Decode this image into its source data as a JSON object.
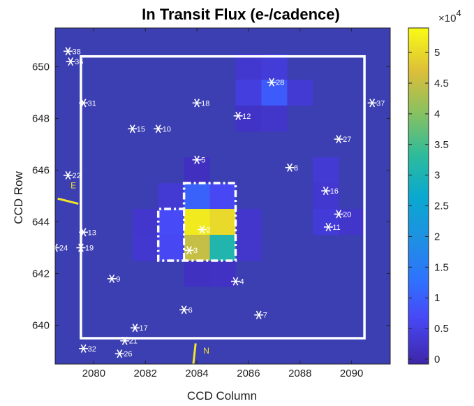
{
  "chart_data": {
    "type": "heatmap",
    "title": "In Transit Flux (e-/cadence)",
    "xlabel": "CCD Column",
    "ylabel": "CCD Row",
    "x_range": [
      2078.5,
      2091.5
    ],
    "y_range": [
      638.5,
      651.5
    ],
    "x_ticks": [
      "2080",
      "2082",
      "2084",
      "2086",
      "2088",
      "2090"
    ],
    "y_ticks": [
      "640",
      "642",
      "644",
      "646",
      "648",
      "650"
    ],
    "colorbar": {
      "colormap": "parula",
      "min": -800,
      "max": 54000,
      "exponent_label": "×10",
      "exponent_power": "4",
      "ticks": [
        {
          "value": 0,
          "label": "0"
        },
        {
          "value": 5000,
          "label": "0.5"
        },
        {
          "value": 10000,
          "label": "1"
        },
        {
          "value": 15000,
          "label": "1.5"
        },
        {
          "value": 20000,
          "label": "2"
        },
        {
          "value": 25000,
          "label": "2.5"
        },
        {
          "value": 30000,
          "label": "3"
        },
        {
          "value": 35000,
          "label": "3.5"
        },
        {
          "value": 40000,
          "label": "4"
        },
        {
          "value": 45000,
          "label": "4.5"
        },
        {
          "value": 50000,
          "label": "5"
        }
      ]
    },
    "pixels": [
      {
        "col": 2086,
        "row": 650,
        "value": 3000
      },
      {
        "col": 2087,
        "row": 650,
        "value": 4000
      },
      {
        "col": 2086,
        "row": 649,
        "value": 4500
      },
      {
        "col": 2087,
        "row": 649,
        "value": 9500
      },
      {
        "col": 2088,
        "row": 649,
        "value": 3500
      },
      {
        "col": 2087,
        "row": 648,
        "value": 2500
      },
      {
        "col": 2086,
        "row": 648,
        "value": 2000
      },
      {
        "col": 2084,
        "row": 645,
        "value": 10500
      },
      {
        "col": 2085,
        "row": 645,
        "value": 6500
      },
      {
        "col": 2083,
        "row": 645,
        "value": 3500
      },
      {
        "col": 2083,
        "row": 644,
        "value": 7000
      },
      {
        "col": 2083,
        "row": 643,
        "value": 6500
      },
      {
        "col": 2084,
        "row": 644,
        "value": 52000
      },
      {
        "col": 2085,
        "row": 644,
        "value": 50000
      },
      {
        "col": 2084,
        "row": 643,
        "value": 45000
      },
      {
        "col": 2085,
        "row": 643,
        "value": 31000
      },
      {
        "col": 2082,
        "row": 644,
        "value": 2800
      },
      {
        "col": 2082,
        "row": 643,
        "value": 3000
      },
      {
        "col": 2086,
        "row": 644,
        "value": 2800
      },
      {
        "col": 2086,
        "row": 643,
        "value": 2600
      },
      {
        "col": 2089,
        "row": 646,
        "value": 3500
      },
      {
        "col": 2089,
        "row": 645,
        "value": 3000
      },
      {
        "col": 2089,
        "row": 644,
        "value": 3800
      },
      {
        "col": 2090,
        "row": 644,
        "value": 2500
      },
      {
        "col": 2084,
        "row": 646,
        "value": 1500
      },
      {
        "col": 2085,
        "row": 642,
        "value": 1800
      },
      {
        "col": 2084,
        "row": 642,
        "value": 1600
      }
    ],
    "stars": [
      {
        "id": "2",
        "col": 2084.2,
        "row": 643.7
      },
      {
        "id": "3",
        "col": 2083.7,
        "row": 642.9
      },
      {
        "id": "4",
        "col": 2085.5,
        "row": 641.7
      },
      {
        "id": "5",
        "col": 2084.0,
        "row": 646.4
      },
      {
        "id": "6",
        "col": 2083.5,
        "row": 640.6
      },
      {
        "id": "7",
        "col": 2086.4,
        "row": 640.4
      },
      {
        "id": "8",
        "col": 2087.6,
        "row": 646.1
      },
      {
        "id": "9",
        "col": 2080.7,
        "row": 641.8
      },
      {
        "id": "10",
        "col": 2082.5,
        "row": 647.6
      },
      {
        "id": "11",
        "col": 2089.1,
        "row": 643.8
      },
      {
        "id": "12",
        "col": 2085.6,
        "row": 648.1
      },
      {
        "id": "13",
        "col": 2079.6,
        "row": 643.6
      },
      {
        "id": "15",
        "col": 2081.5,
        "row": 647.6
      },
      {
        "id": "16",
        "col": 2089.0,
        "row": 645.2
      },
      {
        "id": "17",
        "col": 2081.6,
        "row": 639.9
      },
      {
        "id": "18",
        "col": 2084.0,
        "row": 648.6
      },
      {
        "id": "19",
        "col": 2079.5,
        "row": 643.0
      },
      {
        "id": "20",
        "col": 2089.5,
        "row": 644.3
      },
      {
        "id": "21",
        "col": 2081.2,
        "row": 639.4
      },
      {
        "id": "22",
        "col": 2079.0,
        "row": 645.8
      },
      {
        "id": "24",
        "col": 2078.5,
        "row": 643.0
      },
      {
        "id": "26",
        "col": 2081.0,
        "row": 638.9
      },
      {
        "id": "27",
        "col": 2089.5,
        "row": 647.2
      },
      {
        "id": "28",
        "col": 2086.9,
        "row": 649.4
      },
      {
        "id": "31",
        "col": 2079.6,
        "row": 648.6
      },
      {
        "id": "32",
        "col": 2079.6,
        "row": 639.1
      },
      {
        "id": "36",
        "col": 2079.1,
        "row": 650.2
      },
      {
        "id": "37",
        "col": 2090.8,
        "row": 648.6
      },
      {
        "id": "38",
        "col": 2079.0,
        "row": 650.6
      }
    ],
    "compass": {
      "east": "E",
      "north": "N"
    }
  }
}
